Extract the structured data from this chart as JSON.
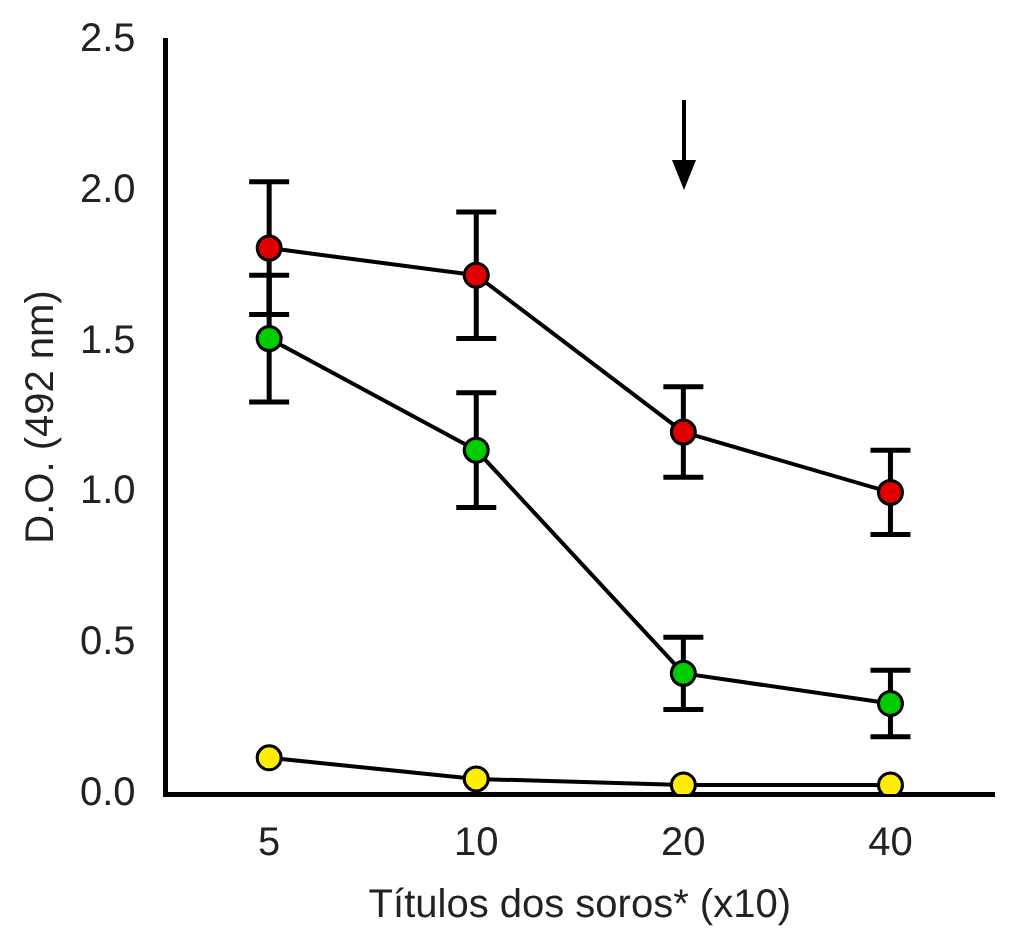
{
  "chart_data": {
    "type": "line",
    "xlabel": "Títulos dos soros* (x10)",
    "ylabel": "D.O. (492 nm)",
    "categories": [
      "5",
      "10",
      "20",
      "40"
    ],
    "series": [
      {
        "color": "#e00000",
        "values": [
          1.81,
          1.72,
          1.2,
          1.0
        ],
        "errors": [
          0.22,
          0.21,
          0.15,
          0.14
        ]
      },
      {
        "color": "#00cc00",
        "values": [
          1.51,
          1.14,
          0.4,
          0.3
        ],
        "errors": [
          0.21,
          0.19,
          0.12,
          0.11
        ]
      },
      {
        "color": "#ffee00",
        "values": [
          0.12,
          0.05,
          0.03,
          0.03
        ]
      }
    ],
    "ylim": [
      0,
      2.5
    ],
    "yticks": [
      {
        "value": 0,
        "label": "0.0"
      },
      0.5,
      {
        "value": 1,
        "label": "1.0"
      },
      1.5,
      {
        "value": 2,
        "label": "2.0"
      },
      2.5
    ],
    "grid": false,
    "legend": false,
    "marker": "circle",
    "line_style": "solid"
  }
}
